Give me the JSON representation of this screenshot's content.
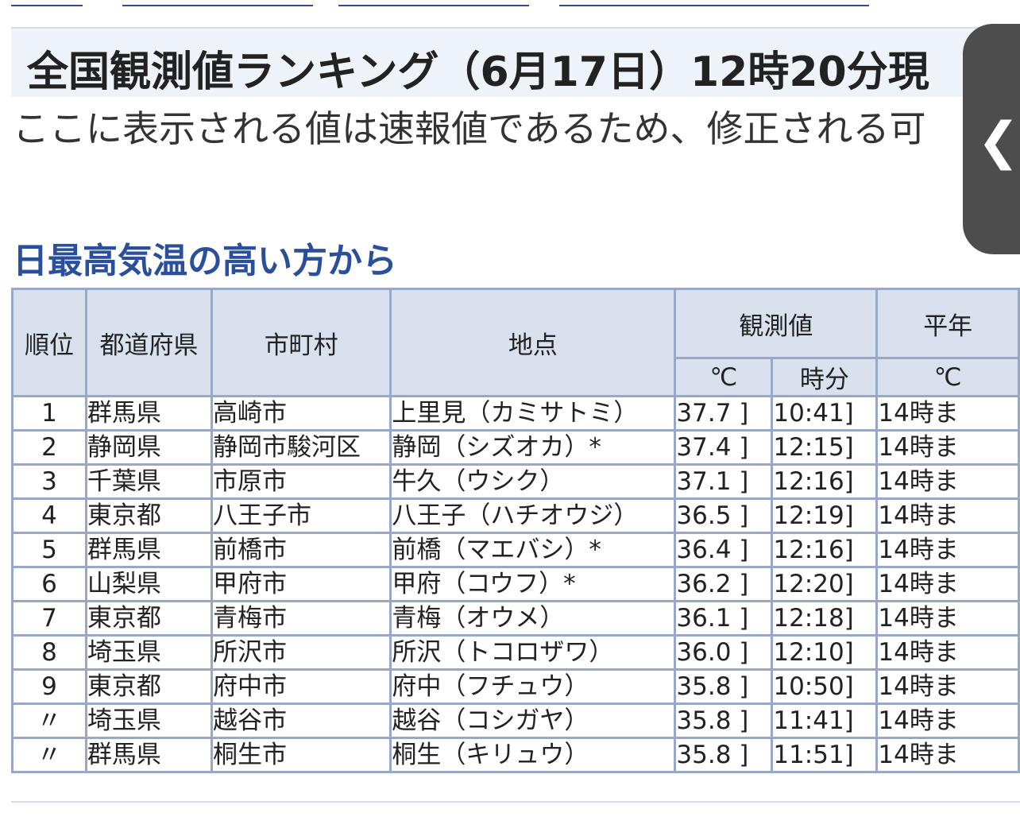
{
  "page": {
    "title": "全国観測値ランキング（6月17日）12時20分現",
    "notice": "ここに表示される値は速報値であるため、修正される可",
    "section_title": "日最高気温の高い方から"
  },
  "side_tab": {
    "icon": "chevron-left-icon",
    "glyph": "❮"
  },
  "table": {
    "headers": {
      "rank": "順位",
      "pref": "都道府県",
      "city": "市町村",
      "point": "地点",
      "observed": "観測値",
      "normal": "平年",
      "unit_c": "℃",
      "unit_time": "時分",
      "unit_c2": "℃"
    },
    "rows": [
      {
        "rank": "1",
        "pref": "群馬県",
        "city": "高崎市",
        "point": "上里見（カミサトミ）",
        "val": "37.7 ]",
        "time": "10:41]",
        "note": "14時ま"
      },
      {
        "rank": "2",
        "pref": "静岡県",
        "city": "静岡市駿河区",
        "point": "静岡（シズオカ）*",
        "val": "37.4 ]",
        "time": "12:15]",
        "note": "14時ま"
      },
      {
        "rank": "3",
        "pref": "千葉県",
        "city": "市原市",
        "point": "牛久（ウシク）",
        "val": "37.1 ]",
        "time": "12:16]",
        "note": "14時ま"
      },
      {
        "rank": "4",
        "pref": "東京都",
        "city": "八王子市",
        "point": "八王子（ハチオウジ）",
        "val": "36.5 ]",
        "time": "12:19]",
        "note": "14時ま"
      },
      {
        "rank": "5",
        "pref": "群馬県",
        "city": "前橋市",
        "point": "前橋（マエバシ）*",
        "val": "36.4 ]",
        "time": "12:16]",
        "note": "14時ま"
      },
      {
        "rank": "6",
        "pref": "山梨県",
        "city": "甲府市",
        "point": "甲府（コウフ）*",
        "val": "36.2 ]",
        "time": "12:20]",
        "note": "14時ま"
      },
      {
        "rank": "7",
        "pref": "東京都",
        "city": "青梅市",
        "point": "青梅（オウメ）",
        "val": "36.1 ]",
        "time": "12:18]",
        "note": "14時ま"
      },
      {
        "rank": "8",
        "pref": "埼玉県",
        "city": "所沢市",
        "point": "所沢（トコロザワ）",
        "val": "36.0 ]",
        "time": "12:10]",
        "note": "14時ま"
      },
      {
        "rank": "9",
        "pref": "東京都",
        "city": "府中市",
        "point": "府中（フチュウ）",
        "val": "35.8 ]",
        "time": "10:50]",
        "note": "14時ま"
      },
      {
        "rank": "〃",
        "pref": "埼玉県",
        "city": "越谷市",
        "point": "越谷（コシガヤ）",
        "val": "35.8 ]",
        "time": "11:41]",
        "note": "14時ま"
      },
      {
        "rank": "〃",
        "pref": "群馬県",
        "city": "桐生市",
        "point": "桐生（キリュウ）",
        "val": "35.8 ]",
        "time": "11:51]",
        "note": "14時ま"
      }
    ]
  }
}
